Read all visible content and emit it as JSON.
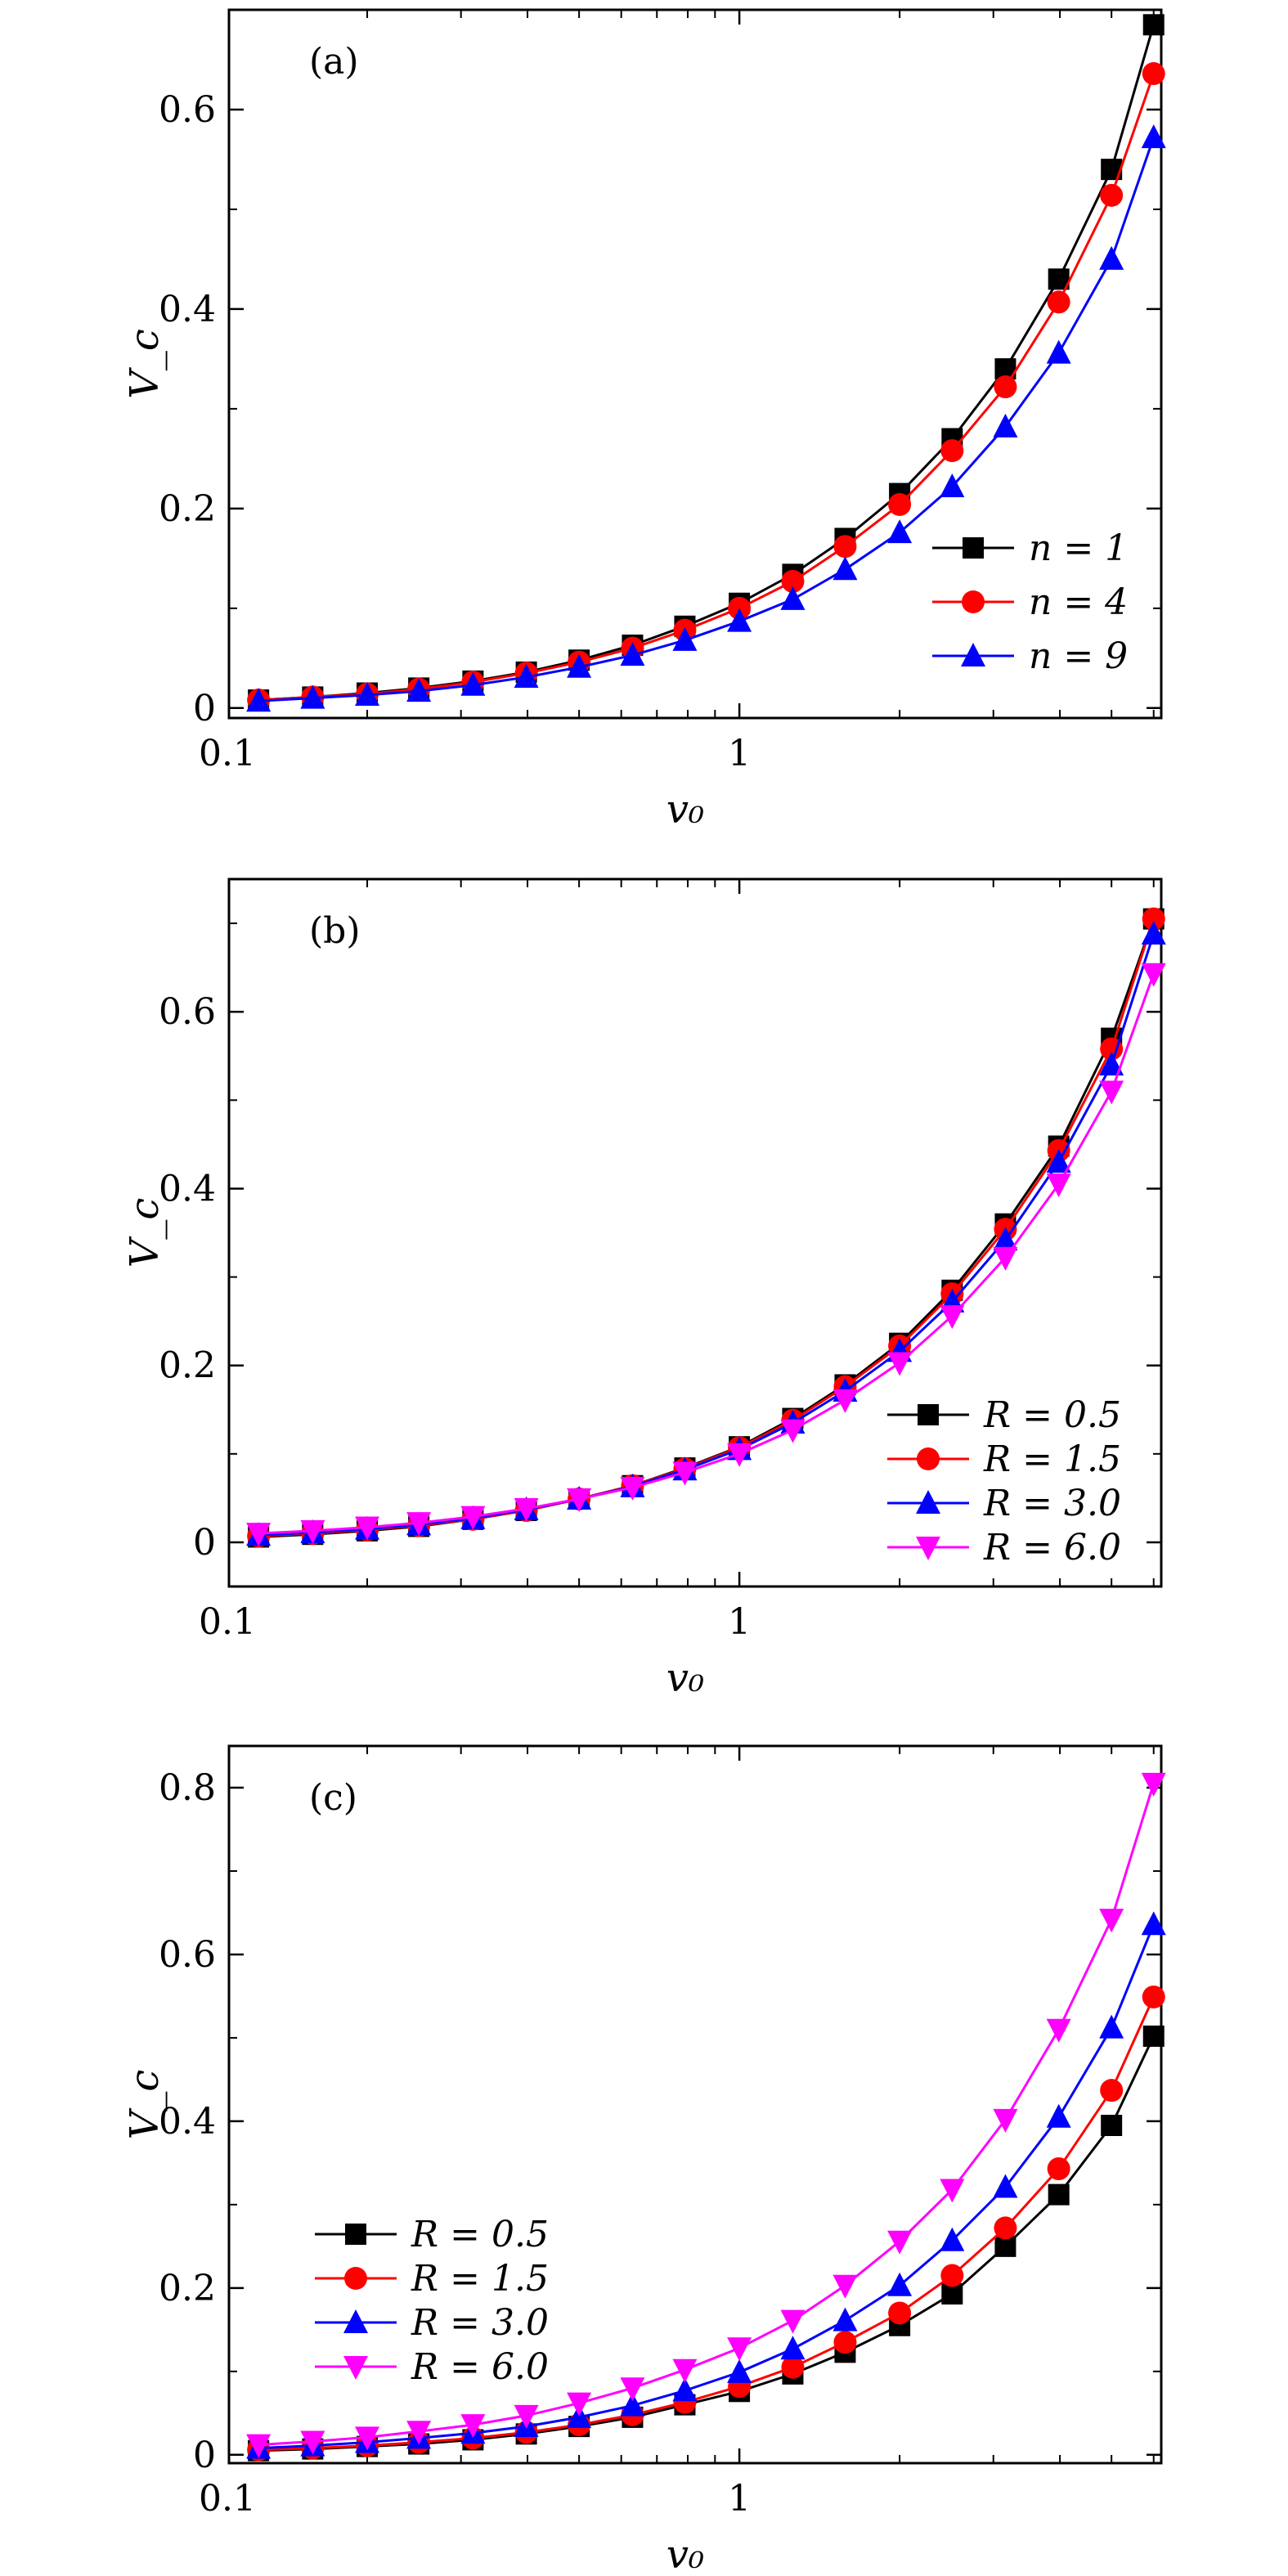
{
  "figure": {
    "chart_data": [
      {
        "type": "line",
        "panel_label": "(a)",
        "xlabel": "v₀",
        "ylabel": "V_c",
        "xscale": "log",
        "xlim": [
          0.11,
          6.2
        ],
        "ylim": [
          -0.01,
          0.7
        ],
        "xticks": [
          {
            "value": 0.1,
            "label": "0.1"
          },
          {
            "value": 1,
            "label": "1"
          }
        ],
        "yticks": [
          {
            "value": 0,
            "label": "0"
          },
          {
            "value": 0.2,
            "label": "0.2"
          },
          {
            "value": 0.4,
            "label": "0.4"
          },
          {
            "value": 0.6,
            "label": "0.6"
          }
        ],
        "legend_position": "bottom-right",
        "x": [
          0.125,
          0.158,
          0.2,
          0.25,
          0.316,
          0.398,
          0.5,
          0.63,
          0.79,
          1.0,
          1.26,
          1.58,
          2.0,
          2.51,
          3.16,
          3.98,
          5.0,
          6.0
        ],
        "series": [
          {
            "name": "n = 1",
            "color": "#000000",
            "marker": "square",
            "values": [
              0.008,
              0.011,
              0.015,
              0.02,
              0.027,
              0.036,
              0.048,
              0.063,
              0.082,
              0.105,
              0.134,
              0.17,
              0.215,
              0.27,
              0.34,
              0.43,
              0.54,
              0.685
            ]
          },
          {
            "name": "n = 4",
            "color": "#ff0000",
            "marker": "circle",
            "values": [
              0.008,
              0.011,
              0.014,
              0.019,
              0.026,
              0.035,
              0.046,
              0.06,
              0.078,
              0.1,
              0.127,
              0.162,
              0.204,
              0.258,
              0.322,
              0.407,
              0.514,
              0.636
            ]
          },
          {
            "name": "n = 9",
            "color": "#0000ff",
            "marker": "triangle-up",
            "values": [
              0.007,
              0.01,
              0.013,
              0.017,
              0.023,
              0.031,
              0.041,
              0.053,
              0.068,
              0.087,
              0.109,
              0.139,
              0.176,
              0.222,
              0.282,
              0.356,
              0.45,
              0.572
            ]
          }
        ]
      },
      {
        "type": "line",
        "panel_label": "(b)",
        "xlabel": "v₀",
        "ylabel": "V_c",
        "xscale": "log",
        "xlim": [
          0.11,
          6.2
        ],
        "ylim": [
          -0.05,
          0.75
        ],
        "xticks": [
          {
            "value": 0.1,
            "label": "0.1"
          },
          {
            "value": 1,
            "label": "1"
          }
        ],
        "yticks": [
          {
            "value": 0,
            "label": "0"
          },
          {
            "value": 0.2,
            "label": "0.2"
          },
          {
            "value": 0.4,
            "label": "0.4"
          },
          {
            "value": 0.6,
            "label": "0.6"
          }
        ],
        "legend_position": "bottom-right",
        "x": [
          0.125,
          0.158,
          0.2,
          0.25,
          0.316,
          0.398,
          0.5,
          0.63,
          0.79,
          1.0,
          1.26,
          1.58,
          2.0,
          2.51,
          3.16,
          3.98,
          5.0,
          6.0
        ],
        "series": [
          {
            "name": "R = 0.5",
            "color": "#000000",
            "marker": "square",
            "values": [
              0.006,
              0.009,
              0.013,
              0.018,
              0.026,
              0.036,
              0.049,
              0.064,
              0.084,
              0.108,
              0.14,
              0.178,
              0.225,
              0.285,
              0.36,
              0.448,
              0.57,
              0.705
            ]
          },
          {
            "name": "R = 1.5",
            "color": "#ff0000",
            "marker": "circle",
            "values": [
              0.007,
              0.01,
              0.014,
              0.019,
              0.026,
              0.036,
              0.049,
              0.064,
              0.083,
              0.107,
              0.138,
              0.176,
              0.222,
              0.281,
              0.354,
              0.443,
              0.558,
              0.705
            ]
          },
          {
            "name": "R = 3.0",
            "color": "#0000ff",
            "marker": "triangle-up",
            "values": [
              0.008,
              0.011,
              0.015,
              0.02,
              0.027,
              0.037,
              0.049,
              0.063,
              0.082,
              0.105,
              0.135,
              0.171,
              0.216,
              0.272,
              0.342,
              0.43,
              0.54,
              0.688
            ]
          },
          {
            "name": "R = 6.0",
            "color": "#ff00ff",
            "marker": "triangle-down",
            "values": [
              0.01,
              0.013,
              0.017,
              0.022,
              0.029,
              0.038,
              0.049,
              0.062,
              0.079,
              0.1,
              0.127,
              0.161,
              0.203,
              0.256,
              0.322,
              0.405,
              0.51,
              0.643
            ]
          }
        ]
      },
      {
        "type": "line",
        "panel_label": "(c)",
        "xlabel": "v₀",
        "ylabel": "V_c",
        "xscale": "log",
        "xlim": [
          0.11,
          6.2
        ],
        "ylim": [
          -0.01,
          0.85
        ],
        "xticks": [
          {
            "value": 0.1,
            "label": "0.1"
          },
          {
            "value": 1,
            "label": "1"
          }
        ],
        "yticks": [
          {
            "value": 0,
            "label": "0"
          },
          {
            "value": 0.2,
            "label": "0.2"
          },
          {
            "value": 0.4,
            "label": "0.4"
          },
          {
            "value": 0.6,
            "label": "0.6"
          },
          {
            "value": 0.8,
            "label": "0.8"
          }
        ],
        "legend_position": "bottom-left",
        "x": [
          0.125,
          0.158,
          0.2,
          0.25,
          0.316,
          0.398,
          0.5,
          0.63,
          0.79,
          1.0,
          1.26,
          1.58,
          2.0,
          2.51,
          3.16,
          3.98,
          5.0,
          6.0
        ],
        "series": [
          {
            "name": "R = 0.5",
            "color": "#000000",
            "marker": "square",
            "values": [
              0.005,
              0.007,
              0.01,
              0.013,
              0.018,
              0.025,
              0.034,
              0.045,
              0.06,
              0.076,
              0.097,
              0.123,
              0.155,
              0.193,
              0.25,
              0.312,
              0.395,
              0.502
            ]
          },
          {
            "name": "R = 1.5",
            "color": "#ff0000",
            "marker": "circle",
            "values": [
              0.006,
              0.008,
              0.011,
              0.015,
              0.02,
              0.027,
              0.036,
              0.048,
              0.063,
              0.082,
              0.105,
              0.135,
              0.17,
              0.215,
              0.272,
              0.343,
              0.437,
              0.549
            ]
          },
          {
            "name": "R = 3.0",
            "color": "#0000ff",
            "marker": "triangle-up",
            "values": [
              0.008,
              0.011,
              0.015,
              0.02,
              0.026,
              0.034,
              0.045,
              0.059,
              0.077,
              0.099,
              0.127,
              0.161,
              0.203,
              0.257,
              0.321,
              0.405,
              0.512,
              0.636
            ]
          },
          {
            "name": "R = 6.0",
            "color": "#ff00ff",
            "marker": "triangle-down",
            "values": [
              0.012,
              0.016,
              0.021,
              0.028,
              0.036,
              0.047,
              0.062,
              0.08,
              0.102,
              0.128,
              0.161,
              0.203,
              0.256,
              0.318,
              0.402,
              0.51,
              0.642,
              0.805
            ]
          }
        ]
      }
    ]
  }
}
